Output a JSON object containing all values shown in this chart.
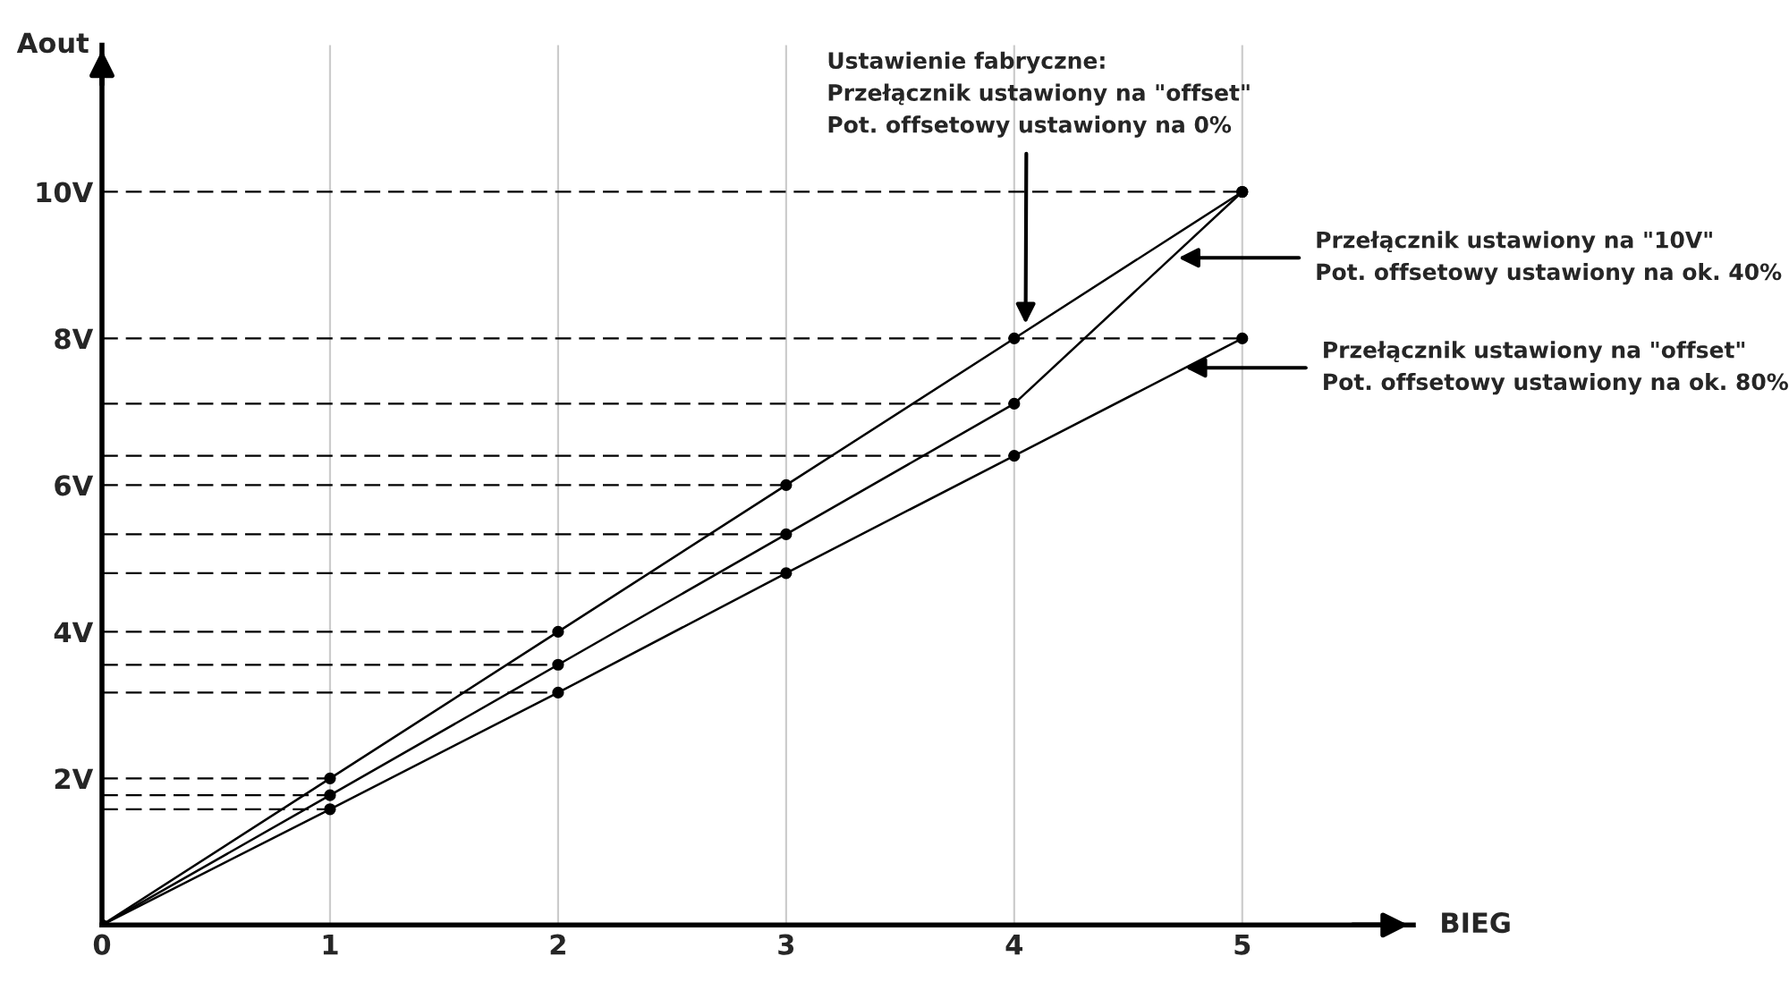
{
  "chart_data": {
    "type": "line",
    "xlabel": "BIEG",
    "ylabel": "Aout",
    "x": [
      0,
      1,
      2,
      3,
      4,
      5
    ],
    "series": [
      {
        "color": "#000000",
        "values": [
          0,
          2,
          4,
          6,
          8,
          10
        ]
      },
      {
        "color": "#000000",
        "values": [
          0,
          1.77,
          3.55,
          5.33,
          7.11,
          10
        ]
      },
      {
        "color": "#000000",
        "values": [
          0,
          1.58,
          3.17,
          4.8,
          6.4,
          8
        ]
      }
    ],
    "xlim": [
      0,
      5.75
    ],
    "ylim": [
      0,
      12
    ],
    "xticks": [
      0,
      1,
      2,
      3,
      4,
      5
    ],
    "yticks": [
      {
        "value": 2,
        "label": "2V"
      },
      {
        "value": 4,
        "label": "4V"
      },
      {
        "value": 6,
        "label": "6V"
      },
      {
        "value": 8,
        "label": "8V"
      },
      {
        "value": 10,
        "label": "10V"
      }
    ],
    "grid": "x",
    "marker": "circle",
    "line_style": "solid",
    "ref_lines": [
      {
        "axis": "y",
        "value": 10,
        "line_style": "dashed",
        "color": "#000000"
      },
      {
        "axis": "y",
        "value": 8,
        "line_style": "dashed",
        "color": "#000000"
      },
      {
        "axis": "y",
        "value": 7.11,
        "line_style": "dashed",
        "color": "#000000"
      },
      {
        "axis": "y",
        "value": 6.4,
        "line_style": "dashed",
        "color": "#000000"
      },
      {
        "axis": "y",
        "value": 6,
        "line_style": "dashed",
        "color": "#000000"
      },
      {
        "axis": "y",
        "value": 5.33,
        "line_style": "dashed",
        "color": "#000000"
      },
      {
        "axis": "y",
        "value": 4.8,
        "line_style": "dashed",
        "color": "#000000"
      },
      {
        "axis": "y",
        "value": 4,
        "line_style": "dashed",
        "color": "#000000"
      },
      {
        "axis": "y",
        "value": 3.55,
        "line_style": "dashed",
        "color": "#000000"
      },
      {
        "axis": "y",
        "value": 3.17,
        "line_style": "dashed",
        "color": "#000000"
      },
      {
        "axis": "y",
        "value": 2,
        "line_style": "dashed",
        "color": "#000000"
      },
      {
        "axis": "y",
        "value": 1.77,
        "line_style": "dashed",
        "color": "#000000"
      },
      {
        "axis": "y",
        "value": 1.58,
        "line_style": "dashed",
        "color": "#000000"
      }
    ],
    "annotations": [
      {
        "text": "Ustawienie fabryczne:\nPrzełącznik ustawiony na \"offset\"\nPot. offsetowy ustawiony na 0%",
        "x": 4.05,
        "y": 8.2
      },
      {
        "text": "Przełącznik ustawiony na \"10V\"\nPot. offsetowy ustawiony na ok. 40%",
        "x": 4.72,
        "y": 9.1
      },
      {
        "text": "Przełącznik ustawiony na \"offset\"\nPot. offsetowy ustawiony na ok. 80%",
        "x": 4.75,
        "y": 7.6
      }
    ]
  }
}
